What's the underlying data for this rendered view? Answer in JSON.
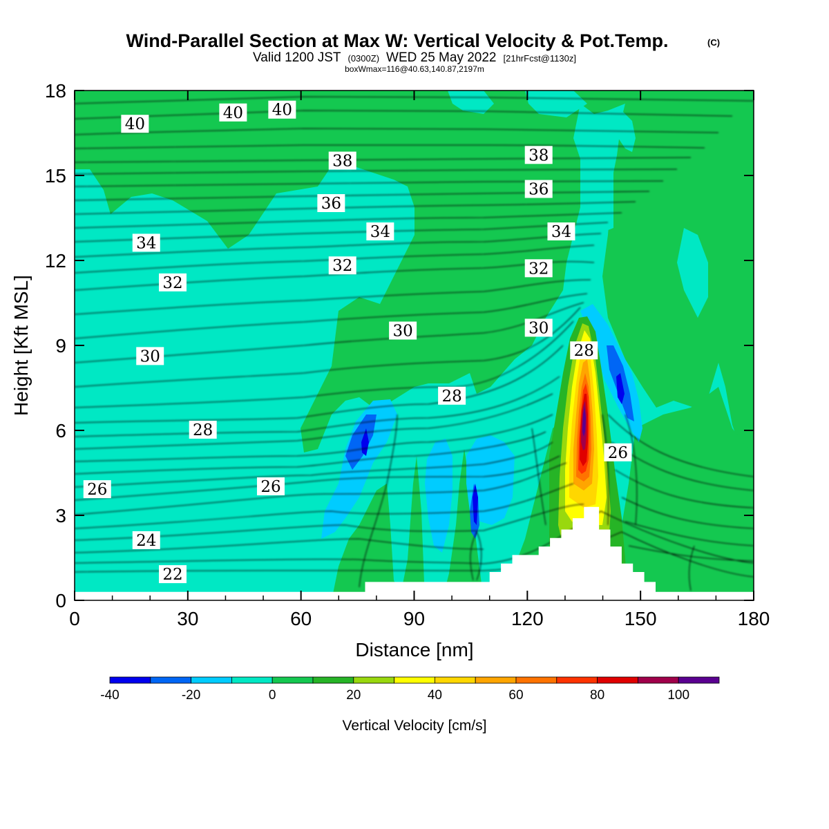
{
  "title": {
    "line1": "Wind-Parallel Section at Max W: Vertical Velocity & Pot.Temp.",
    "line1_mark": "(C)",
    "line2_pre": "Valid 1200 JST",
    "line2_small1": "(0300Z)",
    "line2_mid": "WED 25 May 2022",
    "line2_small2": "[21hrFcst@1130z]",
    "line3": "boxWmax=116@40.63,140.87,2197m"
  },
  "chart_data": {
    "type": "heatmap",
    "xlabel": "Distance [nm]",
    "ylabel": "Height [Kft MSL]",
    "xlim": [
      0,
      180
    ],
    "ylim": [
      0,
      18
    ],
    "x_ticks": [
      "0",
      "30",
      "60",
      "90",
      "120",
      "150",
      "180"
    ],
    "y_ticks": [
      "0",
      "3",
      "6",
      "9",
      "12",
      "15",
      "18"
    ],
    "colorbar": {
      "title": "Vertical Velocity [cm/s]",
      "bounds": [
        -40,
        -30,
        -20,
        -10,
        0,
        10,
        20,
        30,
        40,
        50,
        60,
        70,
        80,
        90,
        100,
        110
      ],
      "labels": [
        "-40",
        "-20",
        "0",
        "20",
        "40",
        "60",
        "80",
        "100"
      ],
      "colors": [
        "#0000ee",
        "#0066f5",
        "#00ccff",
        "#00e8c4",
        "#14c850",
        "#26b426",
        "#99d80e",
        "#ffff00",
        "#ffd700",
        "#ffa500",
        "#ff7300",
        "#ff3300",
        "#e00000",
        "#a0004a",
        "#5a0090"
      ]
    },
    "fill_colors": {
      "weak_down": "#00e8c4",
      "moderate_down": "#00ccff",
      "stronger_down": "#0066f5",
      "strong_down": "#0000ee",
      "weak_up": "#14c850",
      "moderate_up": "#26b426",
      "up_20_30": "#99d80e",
      "up_30_40": "#ffff00",
      "up_40_50": "#ffd700",
      "up_50_60": "#ffa500",
      "up_60_70": "#ff7300",
      "up_70_80": "#ff3300",
      "up_80_90": "#e00000",
      "up_90_100": "#a0004a",
      "up_100_110": "#5a0090",
      "terrain": "#ffffff"
    },
    "potential_temperature_labels": [
      {
        "text": "40",
        "x": 16,
        "y": 16.8
      },
      {
        "text": "40",
        "x": 42,
        "y": 17.2
      },
      {
        "text": "40",
        "x": 55,
        "y": 17.3
      },
      {
        "text": "38",
        "x": 71,
        "y": 15.5
      },
      {
        "text": "38",
        "x": 123,
        "y": 15.7
      },
      {
        "text": "36",
        "x": 68,
        "y": 14.0
      },
      {
        "text": "36",
        "x": 123,
        "y": 14.5
      },
      {
        "text": "34",
        "x": 19,
        "y": 12.6
      },
      {
        "text": "34",
        "x": 81,
        "y": 13.0
      },
      {
        "text": "34",
        "x": 129,
        "y": 13.0
      },
      {
        "text": "32",
        "x": 26,
        "y": 11.2
      },
      {
        "text": "32",
        "x": 71,
        "y": 11.8
      },
      {
        "text": "32",
        "x": 123,
        "y": 11.7
      },
      {
        "text": "30",
        "x": 20,
        "y": 8.6
      },
      {
        "text": "30",
        "x": 87,
        "y": 9.5
      },
      {
        "text": "30",
        "x": 123,
        "y": 9.6
      },
      {
        "text": "28",
        "x": 34,
        "y": 6.0
      },
      {
        "text": "28",
        "x": 100,
        "y": 7.2
      },
      {
        "text": "28",
        "x": 135,
        "y": 8.8
      },
      {
        "text": "26",
        "x": 6,
        "y": 3.9
      },
      {
        "text": "26",
        "x": 52,
        "y": 4.0
      },
      {
        "text": "26",
        "x": 144,
        "y": 5.2
      },
      {
        "text": "24",
        "x": 19,
        "y": 2.1
      },
      {
        "text": "22",
        "x": 26,
        "y": 0.9
      }
    ],
    "terrain_profile": [
      [
        0,
        0.3
      ],
      [
        77,
        0.3
      ],
      [
        77,
        0.65
      ],
      [
        110,
        0.65
      ],
      [
        110,
        1.0
      ],
      [
        113,
        1.0
      ],
      [
        113,
        1.3
      ],
      [
        116,
        1.3
      ],
      [
        116,
        1.6
      ],
      [
        123,
        1.6
      ],
      [
        123,
        1.9
      ],
      [
        126,
        1.9
      ],
      [
        126,
        2.2
      ],
      [
        129,
        2.2
      ],
      [
        129,
        2.5
      ],
      [
        132,
        2.5
      ],
      [
        132,
        2.9
      ],
      [
        135,
        2.9
      ],
      [
        135,
        3.3
      ],
      [
        139,
        3.3
      ],
      [
        139,
        2.5
      ],
      [
        142,
        2.5
      ],
      [
        142,
        1.9
      ],
      [
        145,
        1.9
      ],
      [
        145,
        1.3
      ],
      [
        148,
        1.3
      ],
      [
        148,
        1.0
      ],
      [
        151,
        1.0
      ],
      [
        151,
        0.65
      ],
      [
        154,
        0.65
      ],
      [
        154,
        0.3
      ],
      [
        180,
        0.3
      ]
    ]
  }
}
